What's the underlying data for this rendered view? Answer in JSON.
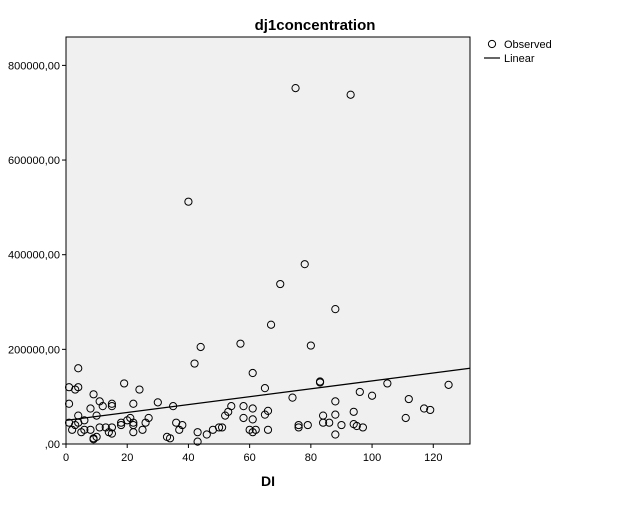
{
  "chart_data": {
    "type": "scatter",
    "title": "dj1concentration",
    "xlabel": "DI",
    "ylabel": "",
    "xlim": [
      0,
      132
    ],
    "ylim": [
      0,
      860000
    ],
    "x_ticks": [
      0,
      20,
      40,
      60,
      80,
      100,
      120
    ],
    "y_ticks": [
      0,
      200000,
      400000,
      600000,
      800000
    ],
    "y_tick_labels": [
      ",00",
      "200000,00",
      "400000,00",
      "600000,00",
      "800000,00"
    ],
    "grid": false,
    "legend": {
      "position": "top-right",
      "entries": [
        {
          "label": "Observed",
          "marker": "circle"
        },
        {
          "label": "Linear",
          "marker": "line"
        }
      ]
    },
    "colors": {
      "plot_background": "#f0f0f0",
      "marker_stroke": "#000000",
      "line": "#000000"
    },
    "linear_fit": {
      "x": [
        0,
        132
      ],
      "y": [
        50000,
        160000
      ]
    },
    "series": [
      {
        "name": "Observed",
        "points": [
          [
            1,
            120000
          ],
          [
            1,
            85000
          ],
          [
            1,
            45000
          ],
          [
            2,
            30000
          ],
          [
            3,
            115000
          ],
          [
            3,
            40000
          ],
          [
            4,
            160000
          ],
          [
            4,
            120000
          ],
          [
            4,
            45000
          ],
          [
            4,
            60000
          ],
          [
            5,
            25000
          ],
          [
            6,
            50000
          ],
          [
            6,
            30000
          ],
          [
            8,
            75000
          ],
          [
            8,
            30000
          ],
          [
            9,
            10000
          ],
          [
            9,
            12000
          ],
          [
            9,
            105000
          ],
          [
            10,
            15000
          ],
          [
            10,
            60000
          ],
          [
            11,
            90000
          ],
          [
            11,
            35000
          ],
          [
            12,
            80000
          ],
          [
            13,
            35000
          ],
          [
            14,
            25000
          ],
          [
            15,
            22000
          ],
          [
            15,
            80000
          ],
          [
            15,
            85000
          ],
          [
            15,
            35000
          ],
          [
            18,
            40000
          ],
          [
            18,
            45000
          ],
          [
            19,
            128000
          ],
          [
            20,
            50000
          ],
          [
            21,
            55000
          ],
          [
            22,
            85000
          ],
          [
            22,
            25000
          ],
          [
            22,
            40000
          ],
          [
            22,
            45000
          ],
          [
            24,
            115000
          ],
          [
            25,
            30000
          ],
          [
            26,
            45000
          ],
          [
            27,
            55000
          ],
          [
            30,
            88000
          ],
          [
            33,
            15000
          ],
          [
            34,
            12000
          ],
          [
            35,
            80000
          ],
          [
            36,
            45000
          ],
          [
            37,
            30000
          ],
          [
            38,
            40000
          ],
          [
            40,
            512000
          ],
          [
            42,
            170000
          ],
          [
            43,
            25000
          ],
          [
            43,
            5000
          ],
          [
            44,
            205000
          ],
          [
            46,
            20000
          ],
          [
            48,
            30000
          ],
          [
            50,
            35000
          ],
          [
            51,
            35000
          ],
          [
            52,
            60000
          ],
          [
            53,
            68000
          ],
          [
            54,
            80000
          ],
          [
            57,
            212000
          ],
          [
            58,
            80000
          ],
          [
            58,
            55000
          ],
          [
            60,
            30000
          ],
          [
            61,
            150000
          ],
          [
            61,
            75000
          ],
          [
            61,
            52000
          ],
          [
            61,
            25000
          ],
          [
            62,
            30000
          ],
          [
            65,
            118000
          ],
          [
            65,
            62000
          ],
          [
            66,
            70000
          ],
          [
            66,
            30000
          ],
          [
            67,
            252000
          ],
          [
            70,
            338000
          ],
          [
            74,
            98000
          ],
          [
            75,
            752000
          ],
          [
            76,
            35000
          ],
          [
            76,
            40000
          ],
          [
            78,
            380000
          ],
          [
            79,
            40000
          ],
          [
            80,
            208000
          ],
          [
            83,
            132000
          ],
          [
            83,
            130000
          ],
          [
            84,
            60000
          ],
          [
            84,
            45000
          ],
          [
            86,
            45000
          ],
          [
            88,
            285000
          ],
          [
            88,
            90000
          ],
          [
            88,
            62000
          ],
          [
            88,
            20000
          ],
          [
            90,
            40000
          ],
          [
            93,
            738000
          ],
          [
            94,
            42000
          ],
          [
            94,
            68000
          ],
          [
            95,
            38000
          ],
          [
            96,
            110000
          ],
          [
            97,
            35000
          ],
          [
            100,
            102000
          ],
          [
            105,
            128000
          ],
          [
            111,
            55000
          ],
          [
            112,
            95000
          ],
          [
            117,
            75000
          ],
          [
            119,
            72000
          ],
          [
            125,
            125000
          ]
        ]
      }
    ]
  }
}
